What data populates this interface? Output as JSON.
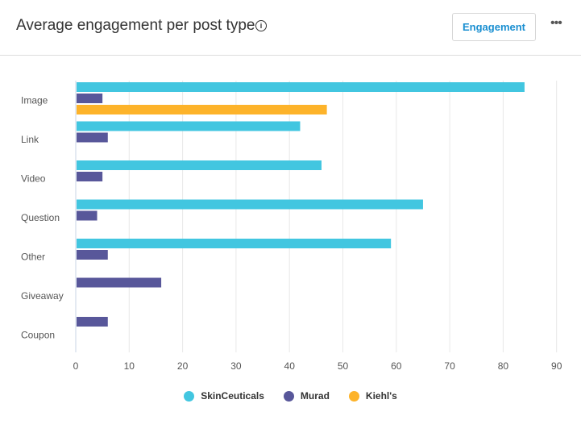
{
  "header": {
    "title": "Average engagement per post type",
    "info_icon": "info-icon",
    "button_label": "Engagement",
    "more_icon": "more-horizontal-icon",
    "more_glyph": "•••"
  },
  "chart_data": {
    "type": "bar",
    "orientation": "horizontal",
    "categories": [
      "Image",
      "Link",
      "Video",
      "Question",
      "Other",
      "Giveaway",
      "Coupon"
    ],
    "series": [
      {
        "name": "SkinCeuticals",
        "color": "#42c6e0",
        "values": [
          84,
          42,
          46,
          65,
          59,
          null,
          null
        ]
      },
      {
        "name": "Murad",
        "color": "#58579a",
        "values": [
          5,
          6,
          5,
          4,
          6,
          16,
          6
        ]
      },
      {
        "name": "Kiehl's",
        "color": "#fdb32a",
        "values": [
          47,
          null,
          null,
          null,
          null,
          null,
          null
        ]
      }
    ],
    "xlim": [
      0,
      90
    ],
    "xticks": [
      "0",
      "10",
      "20",
      "30",
      "40",
      "50",
      "60",
      "70",
      "80",
      "90"
    ],
    "grid": true,
    "legend": "bottom"
  }
}
